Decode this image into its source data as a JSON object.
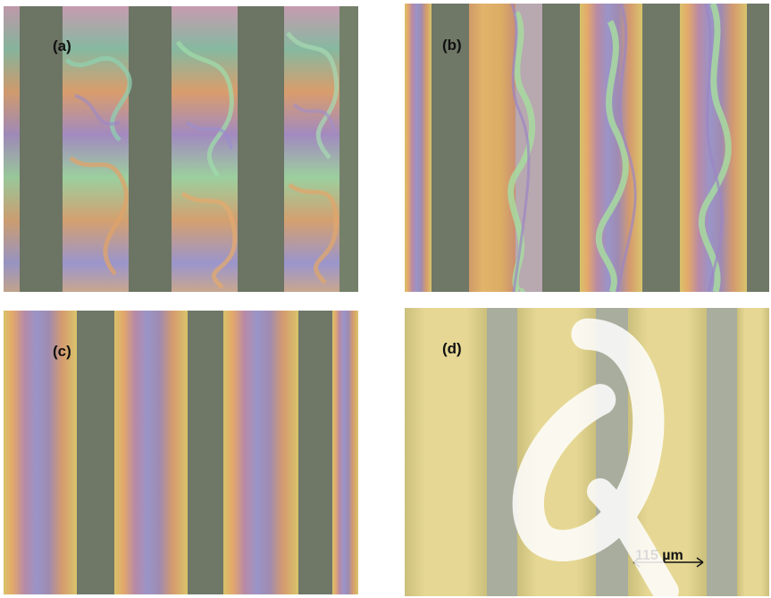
{
  "panels": {
    "a": {
      "label": "(a)"
    },
    "b": {
      "label": "(b)"
    },
    "c": {
      "label": "(c)"
    },
    "d": {
      "label": "(d)",
      "scale_bar": "115 µm"
    }
  },
  "colors": {
    "dark_stripe": "#6f7667",
    "light_stripe_d": "#e3d58c",
    "gray_stripe_d": "#a9ad9d",
    "birefringent_gold": "#d7ae63",
    "birefringent_pink": "#b88da0",
    "birefringent_blue": "#8fa8c8",
    "birefringent_green": "#9bc7a6"
  }
}
